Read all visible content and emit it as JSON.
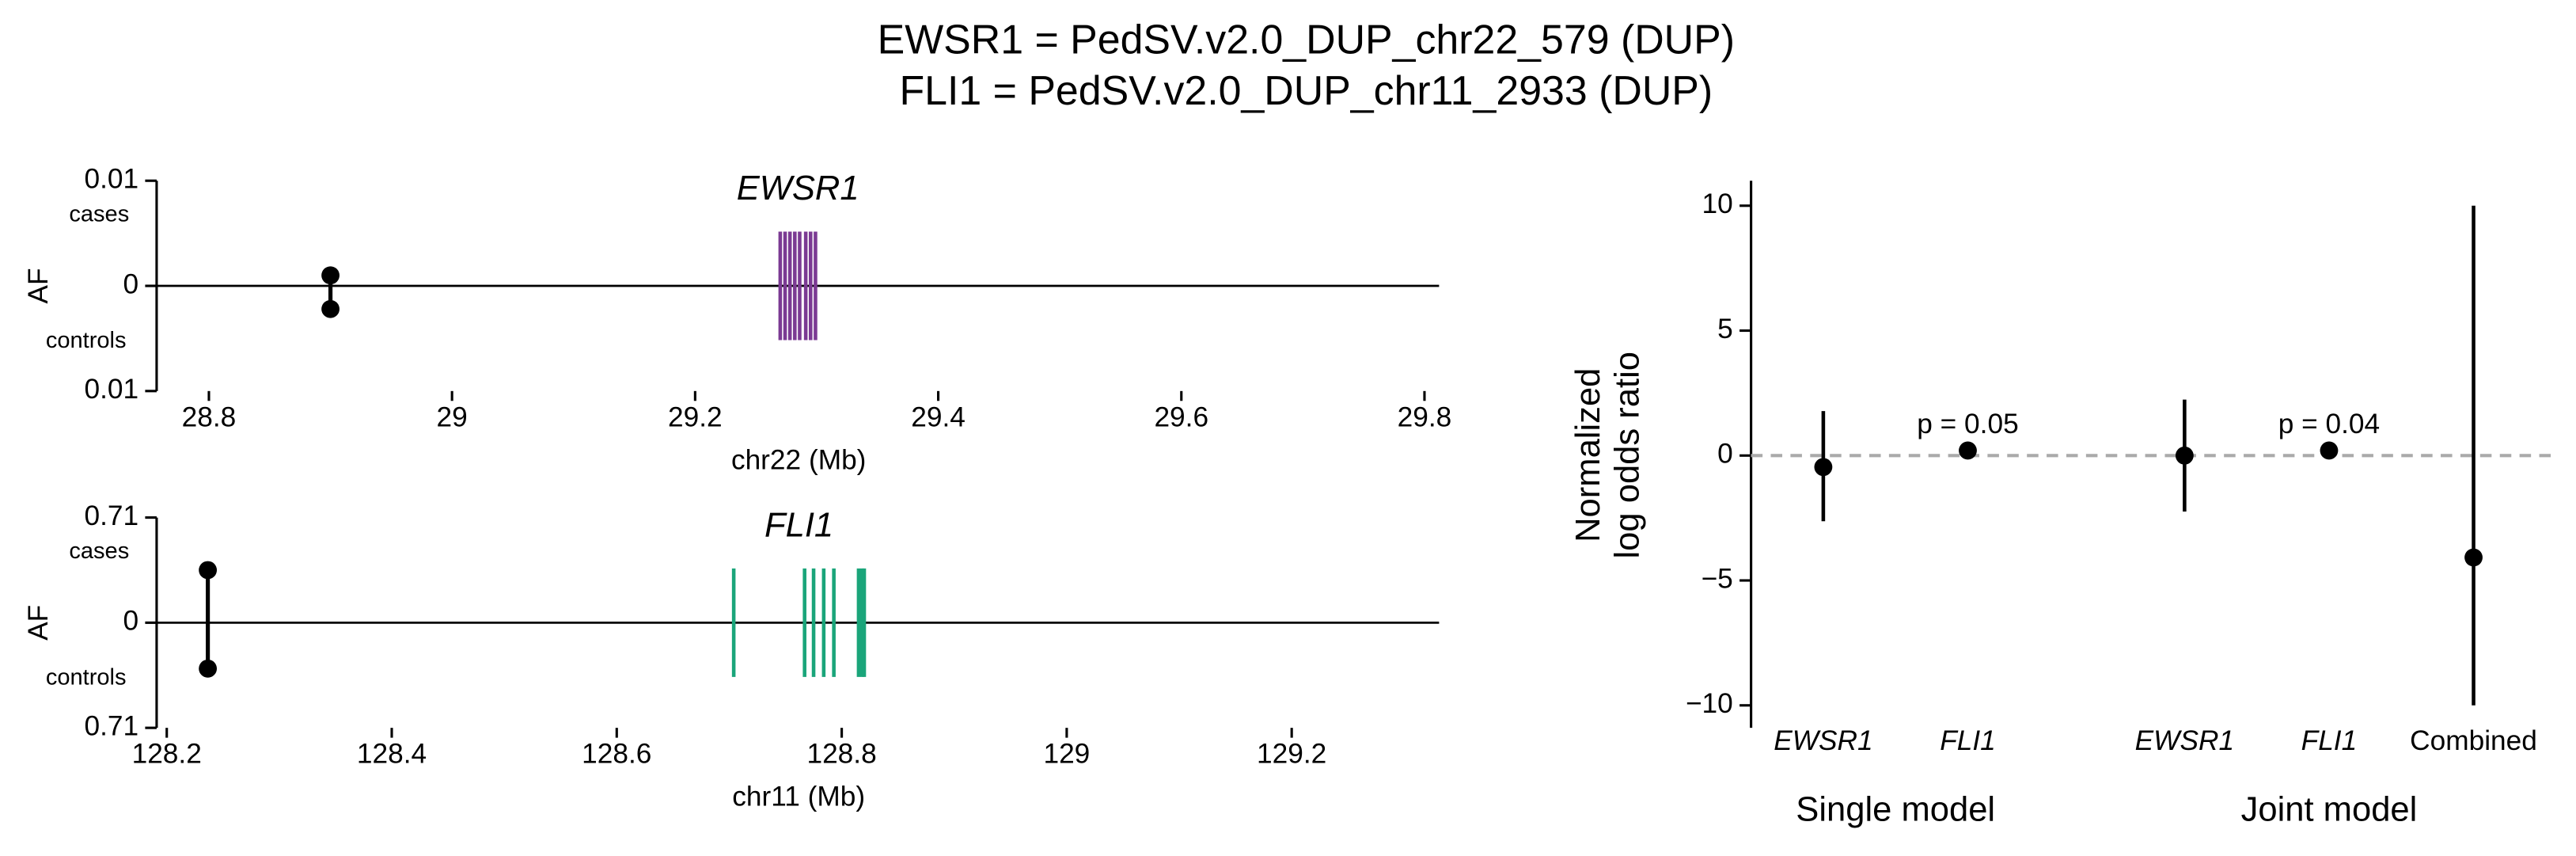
{
  "title": [
    "EWSR1 = PedSV.v2.0_DUP_chr22_579 (DUP)",
    "FLI1 = PedSV.v2.0_DUP_chr11_2933 (DUP)"
  ],
  "chart_data": [
    {
      "type": "locus",
      "gene": "EWSR1",
      "color": "#7b3a93",
      "xlabel": "chr22 (Mb)",
      "ylabel": "AF",
      "cases_label": "cases",
      "controls_label": "controls",
      "xlim": [
        28.757,
        29.812
      ],
      "xticks": [
        28.8,
        29.0,
        29.2,
        29.4,
        29.6,
        29.8
      ],
      "ylim": [
        -0.01,
        0.01
      ],
      "yticks": [
        {
          "value": 0.01,
          "label": "0.01"
        },
        0,
        {
          "value": -0.01,
          "label": "0.01"
        }
      ],
      "variant_x": 28.9,
      "cases_af": 0.001,
      "controls_af": -0.0022,
      "exons": [
        29.27,
        29.274,
        29.278,
        29.282,
        29.286,
        29.291,
        29.295,
        29.299
      ]
    },
    {
      "type": "locus",
      "gene": "FLI1",
      "color": "#1aa57a",
      "xlabel": "chr11 (Mb)",
      "ylabel": "AF",
      "cases_label": "cases",
      "controls_label": "controls",
      "xlim": [
        128.191,
        129.331
      ],
      "xticks": [
        128.2,
        128.4,
        128.6,
        128.8,
        129.0,
        129.2
      ],
      "ylim": [
        -0.71,
        0.71
      ],
      "yticks": [
        {
          "value": 0.71,
          "label": "0.71"
        },
        0,
        {
          "value": -0.71,
          "label": "0.71"
        }
      ],
      "variant_x": 128.2365,
      "cases_af": 0.355,
      "controls_af": -0.31,
      "exons": [
        128.704,
        128.767,
        128.775,
        128.784,
        128.793,
        128.815,
        128.818,
        128.82
      ]
    },
    {
      "type": "errorbar",
      "ylabel": [
        "Normalized",
        "log odds ratio"
      ],
      "categories": [
        "EWSR1",
        "FLI1",
        "EWSR1",
        "FLI1",
        "Combined"
      ],
      "groups": [
        "Single model",
        "Joint model"
      ],
      "values": [
        -0.46,
        0.2,
        0.0,
        0.2,
        -4.08
      ],
      "lower": [
        -2.63,
        null,
        -2.24,
        null,
        -10
      ],
      "upper": [
        1.78,
        null,
        2.24,
        null,
        10
      ],
      "p_labels": [
        null,
        "p = 0.05",
        null,
        "p = 0.04",
        null
      ],
      "hline": 0,
      "ylim": [
        -10.9,
        11
      ],
      "yticks": [
        10,
        5,
        0,
        {
          "value": -5,
          "label": "−5"
        },
        {
          "value": -10,
          "label": "−10"
        }
      ]
    }
  ]
}
